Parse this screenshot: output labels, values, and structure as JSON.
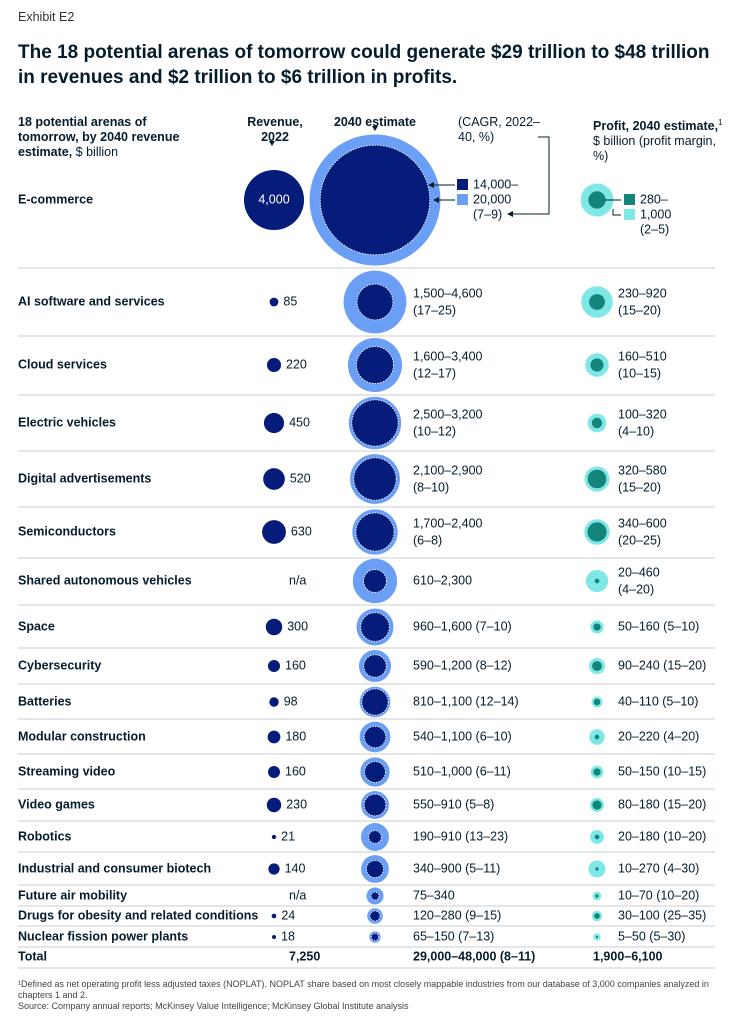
{
  "exhibit_label": "Exhibit E2",
  "title": "The 18 potential arenas of tomorrow could generate $29 trillion to $48 trillion in revenues and $2 trillion to $6 trillion in profits.",
  "headers": {
    "arenas_bold": "18 potential arenas of tomorrow, by 2040 revenue estimate,",
    "arenas_unit": " $ billion",
    "revenue_2022": "Revenue, 2022",
    "estimate_2040": "2040 estimate",
    "cagr": "(CAGR, 2022–40, %)",
    "profit_bold": "Profit, 2040 estimate,",
    "profit_sup": "1",
    "profit_unit": " $ billion (profit margin, %)"
  },
  "legend": {
    "rev_low": "14,000–",
    "rev_high": "20,000",
    "rev_cagr": "(7–9)",
    "profit_low": "280–",
    "profit_high": "1,000",
    "profit_margin": "(2–5)"
  },
  "colors": {
    "navy": "#051c7a",
    "light_blue": "#6b9ef5",
    "teal_dark": "#13857a",
    "teal_light": "#7fe8e6"
  },
  "chart_data": {
    "type": "bubble-table",
    "rows": [
      {
        "arena": "E-commerce",
        "revenue_2022": "4,000",
        "rev2040_low": 14000,
        "rev2040_high": 20000,
        "rev_text": "",
        "cagr_text": "",
        "profit_low": 280,
        "profit_high": 1000,
        "profit_text": "",
        "margin_text": ""
      },
      {
        "arena": "AI software and services",
        "revenue_2022": "85",
        "rev2040_low": 1500,
        "rev2040_high": 4600,
        "rev_text": "1,500–4,600",
        "cagr_text": "(17–25)",
        "profit_low": 230,
        "profit_high": 920,
        "profit_text": "230–920",
        "margin_text": "(15–20)"
      },
      {
        "arena": "Cloud services",
        "revenue_2022": "220",
        "rev2040_low": 1600,
        "rev2040_high": 3400,
        "rev_text": "1,600–3,400",
        "cagr_text": "(12–17)",
        "profit_low": 160,
        "profit_high": 510,
        "profit_text": "160–510",
        "margin_text": "(10–15)"
      },
      {
        "arena": "Electric vehicles",
        "revenue_2022": "450",
        "rev2040_low": 2500,
        "rev2040_high": 3200,
        "rev_text": "2,500–3,200",
        "cagr_text": "(10–12)",
        "profit_low": 100,
        "profit_high": 320,
        "profit_text": "100–320",
        "margin_text": "(4–10)"
      },
      {
        "arena": "Digital advertisements",
        "revenue_2022": "520",
        "rev2040_low": 2100,
        "rev2040_high": 2900,
        "rev_text": "2,100–2,900",
        "cagr_text": "(8–10)",
        "profit_low": 320,
        "profit_high": 580,
        "profit_text": "320–580",
        "margin_text": "(15–20)"
      },
      {
        "arena": "Semiconductors",
        "revenue_2022": "630",
        "rev2040_low": 1700,
        "rev2040_high": 2400,
        "rev_text": "1,700–2,400",
        "cagr_text": "(6–8)",
        "profit_low": 340,
        "profit_high": 600,
        "profit_text": "340–600",
        "margin_text": "(20–25)"
      },
      {
        "arena": "Shared autonomous vehicles",
        "revenue_2022": "n/a",
        "rev2040_low": 610,
        "rev2040_high": 2300,
        "rev_text": "610–2,300",
        "cagr_text": "",
        "profit_low": 20,
        "profit_high": 460,
        "profit_text": "20–460",
        "margin_text": "(4–20)"
      },
      {
        "arena": "Space",
        "revenue_2022": "300",
        "rev2040_low": 960,
        "rev2040_high": 1600,
        "rev_text": "960–1,600 (7–10)",
        "cagr_text": "",
        "profit_low": 50,
        "profit_high": 160,
        "profit_text": "50–160 (5–10)",
        "margin_text": ""
      },
      {
        "arena": "Cybersecurity",
        "revenue_2022": "160",
        "rev2040_low": 590,
        "rev2040_high": 1200,
        "rev_text": "590–1,200 (8–12)",
        "cagr_text": "",
        "profit_low": 90,
        "profit_high": 240,
        "profit_text": "90–240 (15–20)",
        "margin_text": ""
      },
      {
        "arena": "Batteries",
        "revenue_2022": "98",
        "rev2040_low": 810,
        "rev2040_high": 1100,
        "rev_text": "810–1,100 (12–14)",
        "cagr_text": "",
        "profit_low": 40,
        "profit_high": 110,
        "profit_text": "40–110 (5–10)",
        "margin_text": ""
      },
      {
        "arena": "Modular construction",
        "revenue_2022": "180",
        "rev2040_low": 540,
        "rev2040_high": 1100,
        "rev_text": "540–1,100 (6–10)",
        "cagr_text": "",
        "profit_low": 20,
        "profit_high": 220,
        "profit_text": "20–220 (4–20)",
        "margin_text": ""
      },
      {
        "arena": "Streaming video",
        "revenue_2022": "160",
        "rev2040_low": 510,
        "rev2040_high": 1000,
        "rev_text": "510–1,000 (6–11)",
        "cagr_text": "",
        "profit_low": 50,
        "profit_high": 150,
        "profit_text": "50–150 (10–15)",
        "margin_text": ""
      },
      {
        "arena": "Video games",
        "revenue_2022": "230",
        "rev2040_low": 550,
        "rev2040_high": 910,
        "rev_text": "550–910 (5–8)",
        "cagr_text": "",
        "profit_low": 80,
        "profit_high": 180,
        "profit_text": "80–180 (15–20)",
        "margin_text": ""
      },
      {
        "arena": "Robotics",
        "revenue_2022": "21",
        "rev2040_low": 190,
        "rev2040_high": 910,
        "rev_text": "190–910 (13–23)",
        "cagr_text": "",
        "profit_low": 20,
        "profit_high": 180,
        "profit_text": "20–180 (10–20)",
        "margin_text": ""
      },
      {
        "arena": "Industrial and consumer biotech",
        "revenue_2022": "140",
        "rev2040_low": 340,
        "rev2040_high": 900,
        "rev_text": "340–900 (5–11)",
        "cagr_text": "",
        "profit_low": 10,
        "profit_high": 270,
        "profit_text": "10–270 (4–30)",
        "margin_text": ""
      },
      {
        "arena": "Future air mobility",
        "revenue_2022": "n/a",
        "rev2040_low": 75,
        "rev2040_high": 340,
        "rev_text": "75–340",
        "cagr_text": "",
        "profit_low": 10,
        "profit_high": 70,
        "profit_text": "10–70 (10–20)",
        "margin_text": ""
      },
      {
        "arena": "Drugs for obesity and related conditions",
        "revenue_2022": "24",
        "rev2040_low": 120,
        "rev2040_high": 280,
        "rev_text": "120–280 (9–15)",
        "cagr_text": "",
        "profit_low": 30,
        "profit_high": 100,
        "profit_text": "30–100 (25–35)",
        "margin_text": ""
      },
      {
        "arena": "Nuclear fission power plants",
        "revenue_2022": "18",
        "rev2040_low": 65,
        "rev2040_high": 150,
        "rev_text": "65–150 (7–13)",
        "cagr_text": "",
        "profit_low": 5,
        "profit_high": 50,
        "profit_text": "5–50 (5–30)",
        "margin_text": ""
      }
    ],
    "total": {
      "label": "Total",
      "revenue_2022": "7,250",
      "revenue_2040": "29,000–48,000 (8–11)",
      "profit_2040": "1,900–6,100"
    }
  },
  "footnote": "¹Defined as net operating profit less adjusted taxes (NOPLAT). NOPLAT share based on most closely mappable industries from our database of 3,000 companies analyzed in chapters 1 and 2.",
  "source": "Source: Company annual reports; McKinsey Value Intelligence; McKinsey Global Institute analysis"
}
